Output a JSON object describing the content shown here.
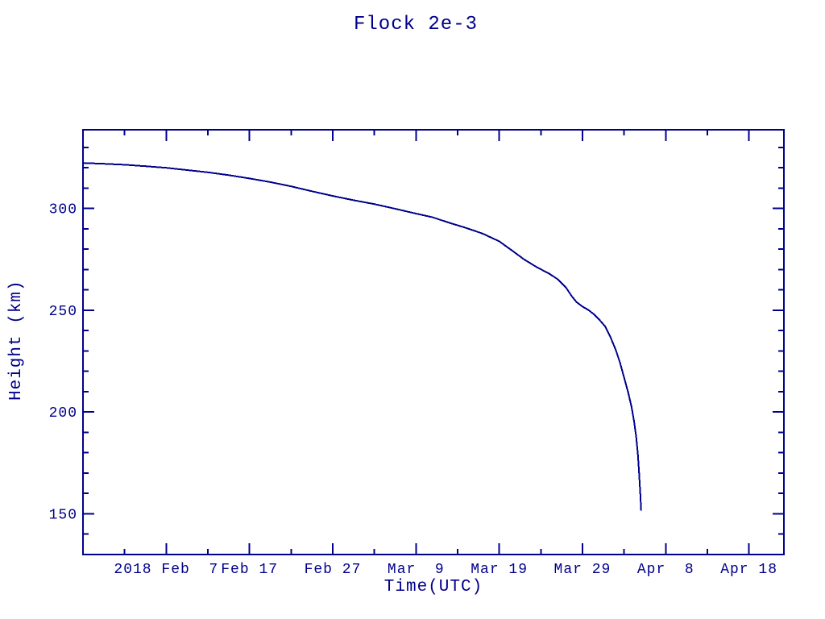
{
  "window": {
    "background_color": "#ffffff"
  },
  "chart_data": {
    "type": "line",
    "title": "Flock 2e-3",
    "xlabel": "Time(UTC)",
    "ylabel": "Height (km)",
    "x_unit": "days since 2018 Jan 28 (UTC)",
    "xlim": [
      0,
      84.2
    ],
    "ylim": [
      130,
      338.7
    ],
    "grid": false,
    "legend_position": "none",
    "colors": {
      "line": "#00008B",
      "axis": "#00008B",
      "text": "#00008B",
      "background": "#ffffff"
    },
    "x_major_ticks": [
      {
        "day": 10,
        "label": "2018 Feb  7"
      },
      {
        "day": 20,
        "label": "Feb 17"
      },
      {
        "day": 30,
        "label": "Feb 27"
      },
      {
        "day": 40,
        "label": "Mar  9"
      },
      {
        "day": 50,
        "label": "Mar 19"
      },
      {
        "day": 60,
        "label": "Mar 29"
      },
      {
        "day": 70,
        "label": "Apr  8"
      },
      {
        "day": 80,
        "label": "Apr 18"
      }
    ],
    "x_minor_tick_days": [
      5,
      15,
      25,
      35,
      45,
      55,
      65,
      75
    ],
    "y_major_ticks": [
      {
        "value": 150,
        "label": "150"
      },
      {
        "value": 200,
        "label": "200"
      },
      {
        "value": 250,
        "label": "250"
      },
      {
        "value": 300,
        "label": "300"
      }
    ],
    "y_minor_tick_values": [
      140,
      160,
      170,
      180,
      190,
      210,
      220,
      230,
      240,
      260,
      270,
      280,
      290,
      310,
      320,
      330
    ],
    "series": [
      {
        "color": "#00008B",
        "points": [
          [
            0,
            322.4
          ],
          [
            2.5,
            322.0
          ],
          [
            5,
            321.5
          ],
          [
            7.5,
            320.8
          ],
          [
            10,
            320.0
          ],
          [
            12.5,
            318.9
          ],
          [
            15,
            317.8
          ],
          [
            17.5,
            316.4
          ],
          [
            20,
            314.8
          ],
          [
            22.5,
            313.0
          ],
          [
            25,
            310.9
          ],
          [
            27.5,
            308.5
          ],
          [
            30,
            306.2
          ],
          [
            32.5,
            304.1
          ],
          [
            35,
            302.2
          ],
          [
            37.5,
            299.9
          ],
          [
            40,
            297.5
          ],
          [
            42,
            295.7
          ],
          [
            44,
            293.0
          ],
          [
            46,
            290.5
          ],
          [
            48,
            287.7
          ],
          [
            50,
            283.9
          ],
          [
            51.5,
            279.5
          ],
          [
            53,
            275.0
          ],
          [
            54.5,
            271.2
          ],
          [
            56,
            268.0
          ],
          [
            57,
            265.3
          ],
          [
            58,
            261.3
          ],
          [
            58.7,
            257.0
          ],
          [
            59.3,
            254.0
          ],
          [
            60,
            251.8
          ],
          [
            60.7,
            250.2
          ],
          [
            61.3,
            248.3
          ],
          [
            62,
            245.5
          ],
          [
            62.7,
            242.2
          ],
          [
            63.3,
            237.5
          ],
          [
            64,
            230.5
          ],
          [
            64.5,
            224.5
          ],
          [
            65,
            217.0
          ],
          [
            65.5,
            209.5
          ],
          [
            65.9,
            202.5
          ],
          [
            66.2,
            195.5
          ],
          [
            66.45,
            188.0
          ],
          [
            66.65,
            179.5
          ],
          [
            66.8,
            170.5
          ],
          [
            66.95,
            159.5
          ],
          [
            67.05,
            151.5
          ]
        ]
      }
    ]
  }
}
